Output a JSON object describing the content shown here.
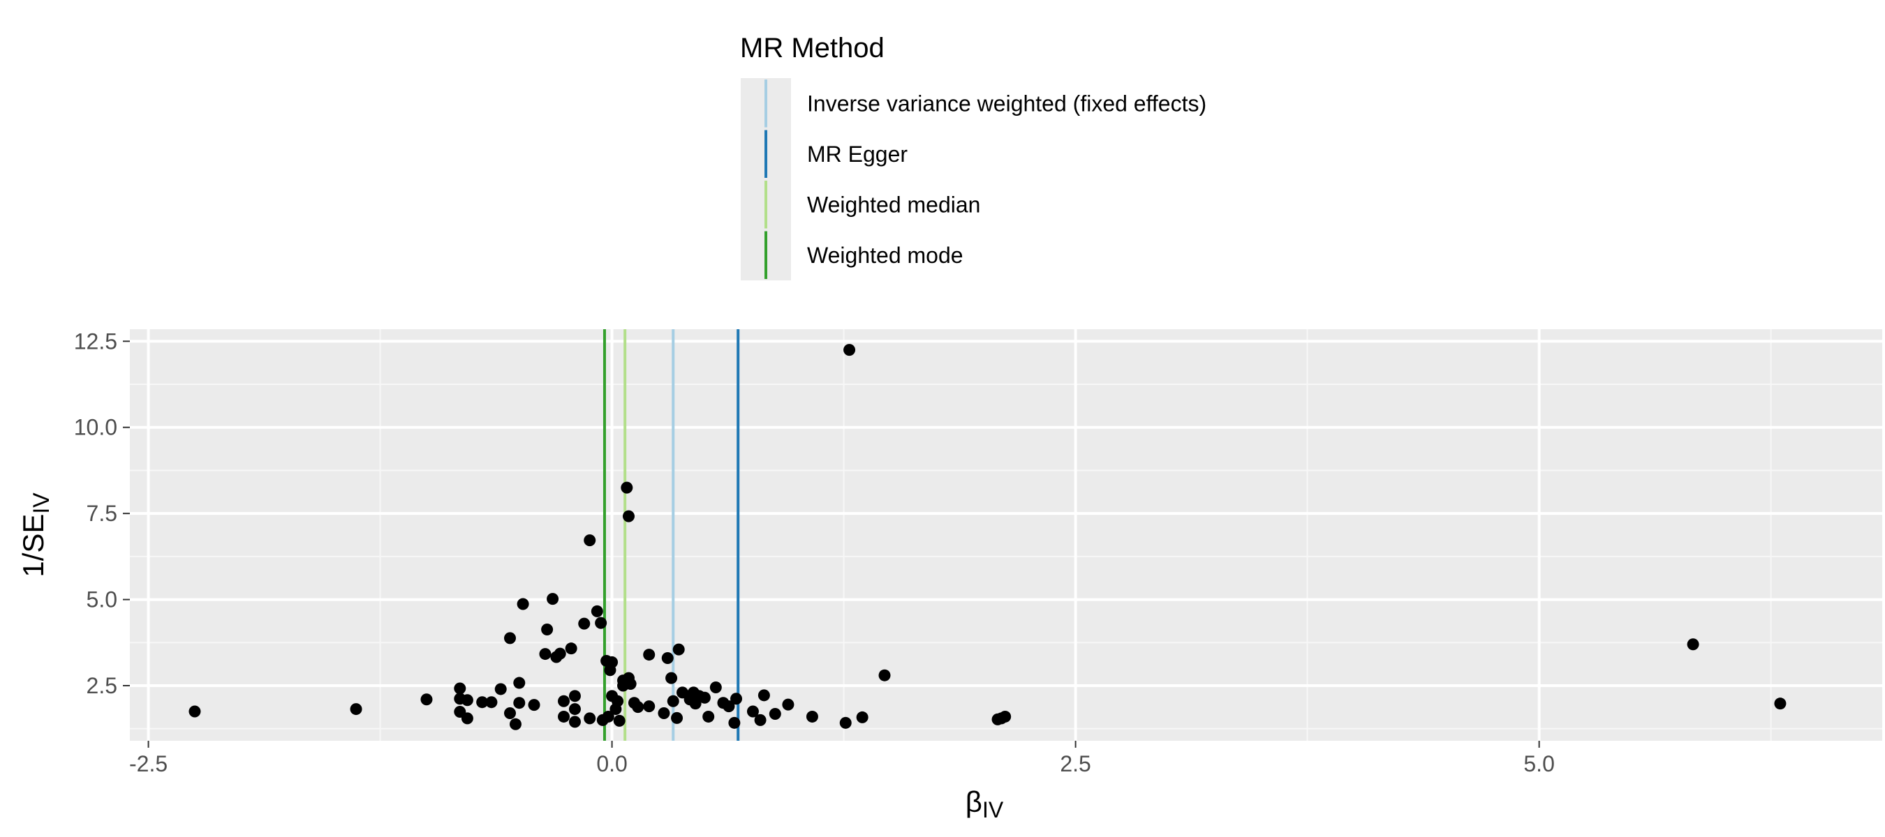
{
  "chart_data": {
    "type": "scatter",
    "title": "",
    "xlabel": {
      "main": "β",
      "sub": "IV"
    },
    "ylabel": {
      "main": "1/SE",
      "sub": "IV"
    },
    "xlim": [
      -2.6,
      6.85
    ],
    "ylim": [
      0.9,
      12.85
    ],
    "x_ticks": [
      -2.5,
      0.0,
      2.5,
      5.0
    ],
    "x_tick_labels": [
      "-2.5",
      "0.0",
      "2.5",
      "5.0"
    ],
    "y_ticks": [
      2.5,
      5.0,
      7.5,
      10.0,
      12.5
    ],
    "y_tick_labels": [
      "2.5",
      "5.0",
      "7.5",
      "10.0",
      "12.5"
    ],
    "grid": true,
    "legend": {
      "title": "MR Method",
      "placement": "top",
      "entries": [
        "Inverse variance weighted (fixed effects)",
        "MR Egger",
        "Weighted median",
        "Weighted mode"
      ]
    },
    "lines": [
      {
        "name": "Inverse variance weighted (fixed effects)",
        "x": 0.33,
        "color": "#a6cee3"
      },
      {
        "name": "MR Egger",
        "x": 0.68,
        "color": "#1f78b4"
      },
      {
        "name": "Weighted median",
        "x": 0.07,
        "color": "#b2df8a"
      },
      {
        "name": "Weighted mode",
        "x": -0.04,
        "color": "#33a02c"
      }
    ],
    "points": [
      [
        -2.25,
        1.75
      ],
      [
        -1.38,
        1.82
      ],
      [
        -1.0,
        2.1
      ],
      [
        -0.82,
        2.42
      ],
      [
        -0.82,
        2.12
      ],
      [
        -0.82,
        1.74
      ],
      [
        -0.78,
        2.08
      ],
      [
        -0.78,
        1.55
      ],
      [
        -0.7,
        2.02
      ],
      [
        -0.65,
        2.02
      ],
      [
        -0.6,
        2.4
      ],
      [
        -0.55,
        1.7
      ],
      [
        -0.55,
        3.88
      ],
      [
        -0.52,
        1.38
      ],
      [
        -0.5,
        2.0
      ],
      [
        -0.5,
        2.58
      ],
      [
        -0.48,
        4.87
      ],
      [
        -0.42,
        1.94
      ],
      [
        -0.36,
        3.42
      ],
      [
        -0.35,
        4.13
      ],
      [
        -0.32,
        5.02
      ],
      [
        -0.3,
        3.33
      ],
      [
        -0.28,
        3.43
      ],
      [
        -0.26,
        1.6
      ],
      [
        -0.26,
        2.05
      ],
      [
        -0.22,
        3.58
      ],
      [
        -0.2,
        2.2
      ],
      [
        -0.2,
        1.82
      ],
      [
        -0.2,
        1.45
      ],
      [
        -0.15,
        4.3
      ],
      [
        -0.12,
        6.72
      ],
      [
        -0.12,
        1.55
      ],
      [
        -0.08,
        4.66
      ],
      [
        -0.06,
        4.32
      ],
      [
        -0.05,
        1.5
      ],
      [
        -0.03,
        3.22
      ],
      [
        -0.02,
        1.6
      ],
      [
        -0.01,
        2.95
      ],
      [
        0.0,
        3.18
      ],
      [
        0.0,
        2.2
      ],
      [
        0.02,
        1.82
      ],
      [
        0.03,
        2.05
      ],
      [
        0.04,
        1.48
      ],
      [
        0.06,
        2.65
      ],
      [
        0.06,
        2.5
      ],
      [
        0.08,
        8.25
      ],
      [
        0.09,
        7.42
      ],
      [
        0.09,
        2.72
      ],
      [
        0.1,
        2.55
      ],
      [
        0.12,
        2.0
      ],
      [
        0.14,
        1.88
      ],
      [
        0.2,
        1.9
      ],
      [
        0.2,
        3.4
      ],
      [
        0.28,
        1.7
      ],
      [
        0.3,
        3.3
      ],
      [
        0.32,
        2.72
      ],
      [
        0.33,
        2.05
      ],
      [
        0.35,
        1.56
      ],
      [
        0.36,
        3.55
      ],
      [
        0.38,
        2.3
      ],
      [
        0.42,
        2.1
      ],
      [
        0.44,
        2.3
      ],
      [
        0.45,
        1.98
      ],
      [
        0.47,
        2.2
      ],
      [
        0.5,
        2.15
      ],
      [
        0.52,
        1.6
      ],
      [
        0.56,
        2.45
      ],
      [
        0.6,
        2.0
      ],
      [
        0.63,
        1.9
      ],
      [
        0.66,
        1.42
      ],
      [
        0.67,
        2.12
      ],
      [
        0.76,
        1.75
      ],
      [
        0.8,
        1.5
      ],
      [
        0.82,
        2.22
      ],
      [
        0.88,
        1.68
      ],
      [
        0.95,
        1.95
      ],
      [
        1.08,
        1.6
      ],
      [
        1.26,
        1.42
      ],
      [
        1.28,
        12.25
      ],
      [
        1.35,
        1.58
      ],
      [
        1.47,
        2.8
      ],
      [
        2.08,
        1.52
      ],
      [
        2.1,
        1.55
      ],
      [
        2.12,
        1.6
      ],
      [
        5.83,
        3.7
      ],
      [
        6.3,
        1.98
      ]
    ]
  }
}
